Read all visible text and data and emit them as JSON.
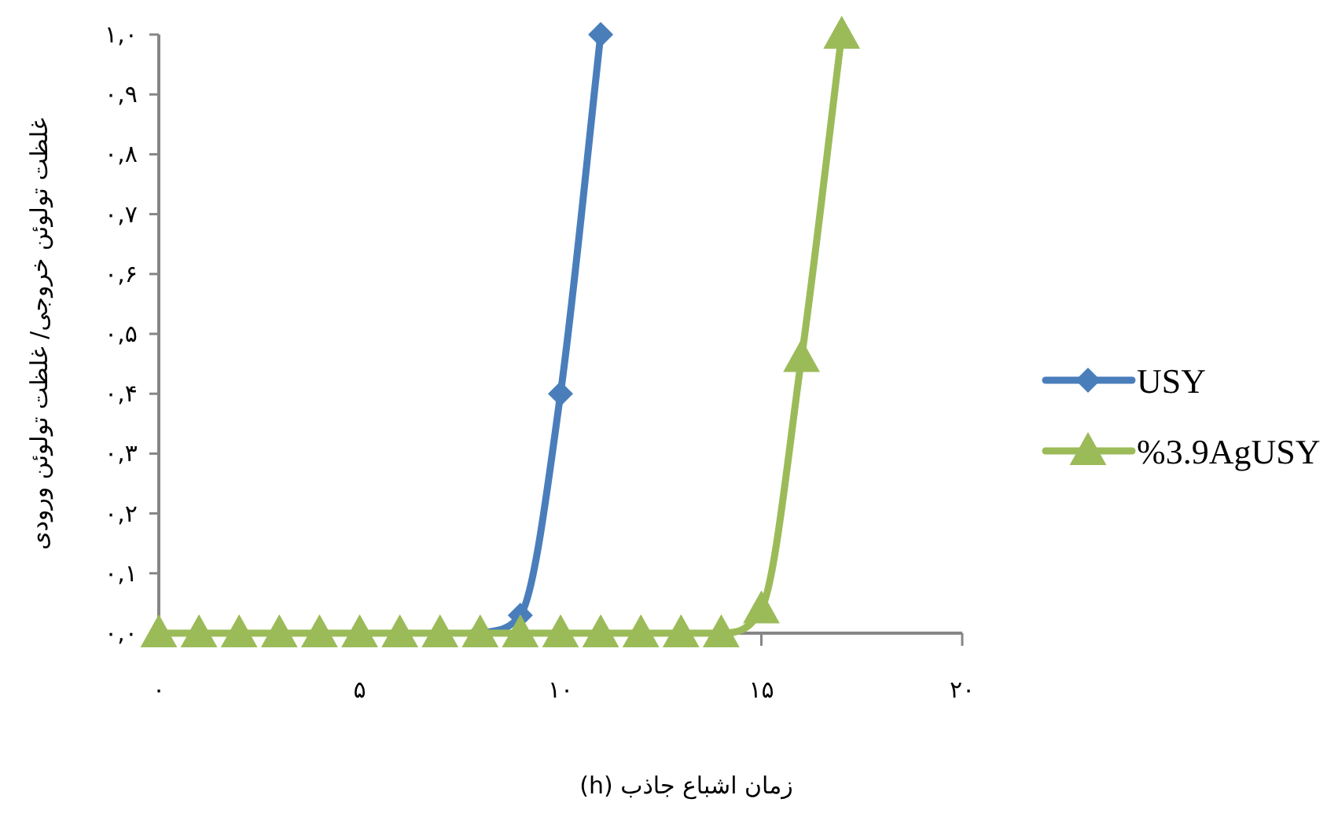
{
  "chart_data": {
    "type": "line",
    "xlabel": "زمان اشباع جاذب   (h)",
    "ylabel": "غلظت تولوئن خروجی/ غلظت تولوئن ورودی",
    "xlim": [
      0,
      20
    ],
    "ylim": [
      0,
      1
    ],
    "xticks": [
      {
        "value": 0,
        "label": "۰"
      },
      {
        "value": 5,
        "label": "۵"
      },
      {
        "value": 10,
        "label": "۱۰"
      },
      {
        "value": 15,
        "label": "۱۵"
      },
      {
        "value": 20,
        "label": "۲۰"
      }
    ],
    "yticks": [
      {
        "value": 0,
        "label": "۰,۰"
      },
      {
        "value": 0.1,
        "label": "۰,۱"
      },
      {
        "value": 0.2,
        "label": "۰,۲"
      },
      {
        "value": 0.3,
        "label": "۰,۳"
      },
      {
        "value": 0.4,
        "label": "۰,۴"
      },
      {
        "value": 0.5,
        "label": "۰,۵"
      },
      {
        "value": 0.6,
        "label": "۰,۶"
      },
      {
        "value": 0.7,
        "label": "۰,۷"
      },
      {
        "value": 0.8,
        "label": "۰,۸"
      },
      {
        "value": 0.9,
        "label": "۰,۹"
      },
      {
        "value": 1.0,
        "label": "۱,۰"
      }
    ],
    "grid": false,
    "legend": "right",
    "series": [
      {
        "name": "USY",
        "color": "#4a7ebb",
        "marker": "diamond",
        "x": [
          8,
          9,
          10,
          11
        ],
        "values": [
          0,
          0.03,
          0.4,
          1.0
        ]
      },
      {
        "name": "%3.9AgUSY",
        "color": "#9bbb59",
        "marker": "triangle",
        "x": [
          0,
          1,
          2,
          3,
          4,
          5,
          6,
          7,
          8,
          9,
          10,
          11,
          12,
          13,
          14,
          15,
          16,
          17
        ],
        "values": [
          0,
          0,
          0,
          0,
          0,
          0,
          0,
          0,
          0,
          0,
          0,
          0,
          0,
          0,
          0,
          0.04,
          0.46,
          1.0
        ]
      }
    ]
  }
}
